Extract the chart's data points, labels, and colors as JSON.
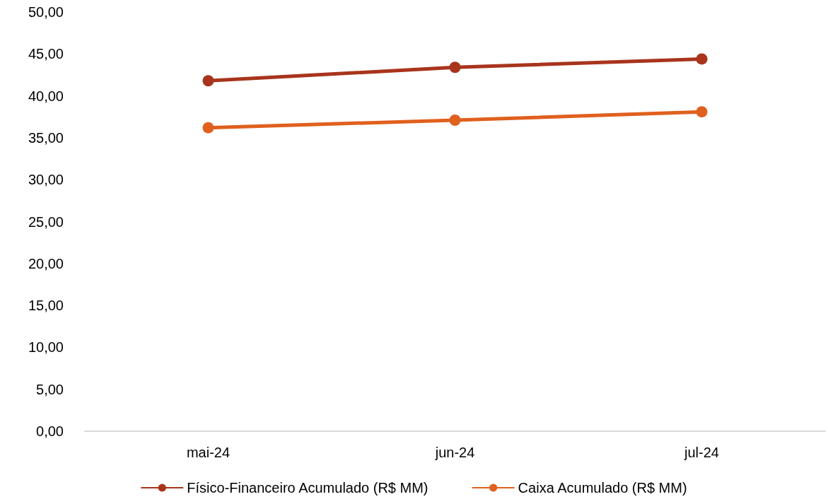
{
  "chart_data": {
    "type": "line",
    "categories": [
      "mai-24",
      "jun-24",
      "jul-24"
    ],
    "series": [
      {
        "name": "Físico-Financeiro Acumulado (R$ MM)",
        "color": "#a8341c",
        "values": [
          41.8,
          43.4,
          44.4
        ]
      },
      {
        "name": "Caixa Acumulado (R$ MM)",
        "color": "#e0601e",
        "values": [
          36.2,
          37.1,
          38.1
        ]
      }
    ],
    "ylim": [
      0,
      50
    ],
    "yticks": [
      {
        "value": 0,
        "label": "0,00"
      },
      {
        "value": 5,
        "label": "5,00"
      },
      {
        "value": 10,
        "label": "10,00"
      },
      {
        "value": 15,
        "label": "15,00"
      },
      {
        "value": 20,
        "label": "20,00"
      },
      {
        "value": 25,
        "label": "25,00"
      },
      {
        "value": 30,
        "label": "30,00"
      },
      {
        "value": 35,
        "label": "35,00"
      },
      {
        "value": 40,
        "label": "40,00"
      },
      {
        "value": 45,
        "label": "45,00"
      },
      {
        "value": 50,
        "label": "50,00"
      }
    ],
    "grid": false,
    "legend": "bottom",
    "marker": "circle",
    "line_style": "solid"
  }
}
